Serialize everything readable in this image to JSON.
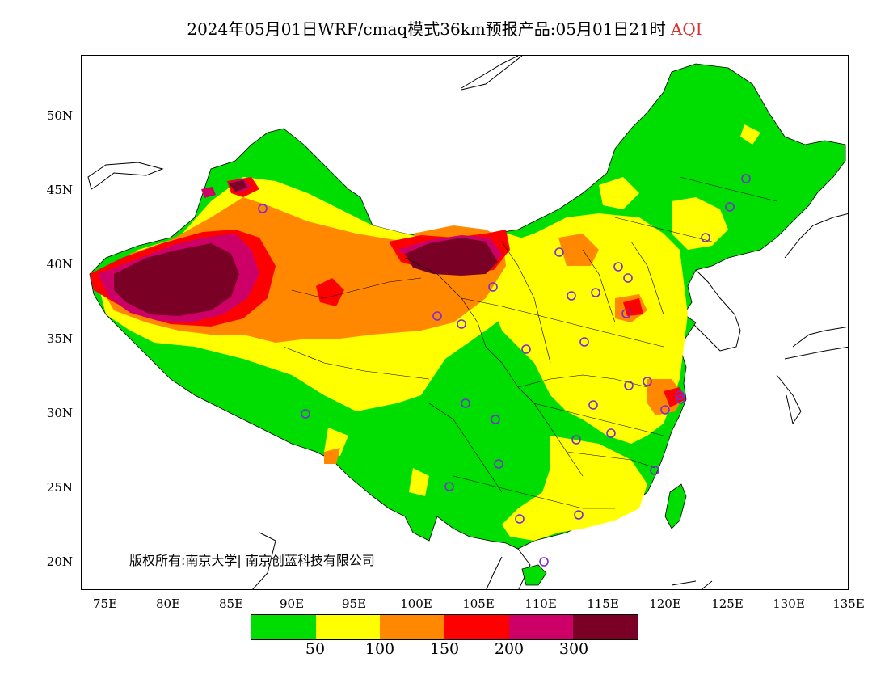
{
  "title": {
    "text": "2024年05月01日WRF/cmaq模式36km预报产品:05月01日21时",
    "variable": "AQI",
    "variable_color": "#d93030"
  },
  "axes": {
    "lat_labels": [
      "50N",
      "45N",
      "40N",
      "35N",
      "30N",
      "25N",
      "20N"
    ],
    "lon_labels": [
      "75E",
      "80E",
      "85E",
      "90E",
      "95E",
      "100E",
      "105E",
      "110E",
      "115E",
      "120E",
      "125E",
      "130E",
      "135E"
    ]
  },
  "copyright": "版权所有:南京大学| 南京创蓝科技有限公司",
  "legend": {
    "colors": [
      "#00dd00",
      "#ffff00",
      "#ff8800",
      "#ff0000",
      "#cc0066",
      "#7a0026"
    ],
    "ticks": [
      "50",
      "100",
      "150",
      "200",
      "300"
    ]
  },
  "map": {
    "colors": {
      "good": "#00dd00",
      "moderate": "#ffff00",
      "unhealthy_sensitive": "#ff8800",
      "unhealthy": "#ff0000",
      "very_unhealthy": "#cc0066",
      "hazardous": "#7a0026",
      "boundary": "#000000",
      "station_marker": "#7a2bd8"
    }
  }
}
